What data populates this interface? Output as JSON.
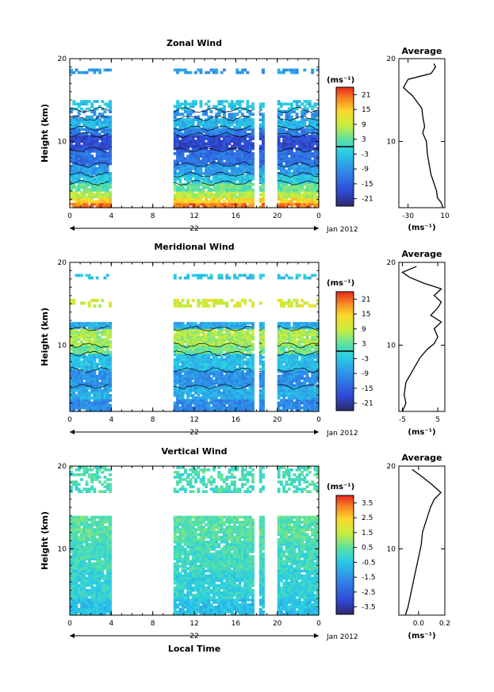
{
  "chart_data": [
    {
      "type": "heatmap",
      "title": "Zonal Wind",
      "ylabel": "Height (km)",
      "xlabel": "",
      "x_ticks": [
        "0",
        "4",
        "8",
        "12",
        "16",
        "20",
        "0"
      ],
      "y_ticks": [
        "10",
        "20"
      ],
      "date_center_label": "22",
      "date_label": "Jan 2012",
      "xlim": [
        0,
        24
      ],
      "ylim": [
        2,
        20
      ],
      "colorbar": {
        "unit": "(ms⁻¹)",
        "ticks": [
          "21",
          "15",
          "9",
          "3",
          "-3",
          "-9",
          "-15",
          "-21"
        ],
        "range": [
          -24,
          24
        ]
      },
      "gaps_hours": [
        [
          4.0,
          9.8
        ],
        [
          17.6,
          18.1
        ],
        [
          18.6,
          20.0
        ]
      ],
      "layers": [
        {
          "y0": 2.0,
          "y1": 2.6,
          "value": 20
        },
        {
          "y0": 2.6,
          "y1": 3.2,
          "value": 14
        },
        {
          "y0": 3.2,
          "y1": 4.0,
          "value": 8
        },
        {
          "y0": 4.0,
          "y1": 5.0,
          "value": 3
        },
        {
          "y0": 5.0,
          "y1": 6.0,
          "value": -3
        },
        {
          "y0": 6.0,
          "y1": 7.2,
          "value": -8
        },
        {
          "y0": 7.2,
          "y1": 9.0,
          "value": -13
        },
        {
          "y0": 9.0,
          "y1": 10.8,
          "value": -18
        },
        {
          "y0": 10.8,
          "y1": 11.6,
          "value": -11
        },
        {
          "y0": 11.6,
          "y1": 12.8,
          "value": -5
        },
        {
          "y0": 12.8,
          "y1": 13.8,
          "value": -9
        },
        {
          "y0": 13.8,
          "y1": 15.0,
          "value": -3
        },
        {
          "y0": 18.2,
          "y1": 18.8,
          "value": -8
        }
      ],
      "average_profile": {
        "title": "Average",
        "xlabel": "(ms⁻¹)",
        "x_ticks": [
          "-30",
          "10"
        ],
        "y_ticks": [
          "10",
          "20"
        ],
        "xlim": [
          -40,
          10
        ],
        "ylim": [
          2,
          20
        ],
        "points": [
          [
            8,
            2.0
          ],
          [
            6,
            2.6
          ],
          [
            2,
            3.2
          ],
          [
            1,
            4.0
          ],
          [
            -2,
            5.0
          ],
          [
            -5,
            6.0
          ],
          [
            -7,
            7.2
          ],
          [
            -9,
            8.5
          ],
          [
            -10,
            10.0
          ],
          [
            -14,
            11.0
          ],
          [
            -12,
            11.8
          ],
          [
            -14,
            13.0
          ],
          [
            -15,
            14.0
          ],
          [
            -25,
            15.5
          ],
          [
            -35,
            16.5
          ],
          [
            -30,
            17.5
          ],
          [
            -5,
            18.2
          ],
          [
            0,
            19.0
          ],
          [
            -2,
            19.4
          ]
        ]
      }
    },
    {
      "type": "heatmap",
      "title": "Meridional Wind",
      "ylabel": "Height (km)",
      "xlabel": "",
      "x_ticks": [
        "0",
        "4",
        "8",
        "12",
        "16",
        "20",
        "0"
      ],
      "y_ticks": [
        "10",
        "20"
      ],
      "date_center_label": "22",
      "date_label": "Jan 2012",
      "xlim": [
        0,
        24
      ],
      "ylim": [
        2,
        20
      ],
      "colorbar": {
        "unit": "(ms⁻¹)",
        "ticks": [
          "21",
          "15",
          "9",
          "3",
          "-3",
          "-9",
          "-15",
          "-21"
        ],
        "range": [
          -24,
          24
        ]
      },
      "gaps_hours": [
        [
          4.0,
          9.8
        ],
        [
          17.6,
          18.1
        ],
        [
          18.6,
          20.0
        ]
      ],
      "layers": [
        {
          "y0": 2.0,
          "y1": 3.5,
          "value": -10
        },
        {
          "y0": 3.5,
          "y1": 5.0,
          "value": -6
        },
        {
          "y0": 5.0,
          "y1": 7.0,
          "value": -9
        },
        {
          "y0": 7.0,
          "y1": 9.0,
          "value": -4
        },
        {
          "y0": 9.0,
          "y1": 10.0,
          "value": 4
        },
        {
          "y0": 10.0,
          "y1": 12.0,
          "value": 7
        },
        {
          "y0": 12.0,
          "y1": 12.8,
          "value": -6
        },
        {
          "y0": 14.6,
          "y1": 15.6,
          "value": 10
        },
        {
          "y0": 18.0,
          "y1": 18.6,
          "value": -3
        }
      ],
      "average_profile": {
        "title": "Average",
        "xlabel": "(ms⁻¹)",
        "x_ticks": [
          "-5",
          "5"
        ],
        "y_ticks": [
          "10",
          "20"
        ],
        "xlim": [
          -6,
          7
        ],
        "ylim": [
          2,
          20
        ],
        "points": [
          [
            -5,
            2.0
          ],
          [
            -4,
            3.0
          ],
          [
            -4.5,
            4.0
          ],
          [
            -4,
            5.5
          ],
          [
            -2,
            7.0
          ],
          [
            0,
            8.5
          ],
          [
            2,
            9.5
          ],
          [
            4,
            10.2
          ],
          [
            5,
            11.0
          ],
          [
            4,
            12.0
          ],
          [
            6,
            12.8
          ],
          [
            3,
            13.6
          ],
          [
            5,
            14.5
          ],
          [
            6,
            15.2
          ],
          [
            4,
            16.0
          ],
          [
            6,
            16.8
          ],
          [
            1,
            17.5
          ],
          [
            -3,
            18.2
          ],
          [
            -5,
            18.8
          ],
          [
            -1,
            19.5
          ]
        ]
      }
    },
    {
      "type": "heatmap",
      "title": "Vertical Wind",
      "ylabel": "Height (km)",
      "xlabel": "Local Time",
      "x_ticks": [
        "0",
        "4",
        "8",
        "12",
        "16",
        "20",
        "0"
      ],
      "y_ticks": [
        "10",
        "20"
      ],
      "date_center_label": "22",
      "date_label": "Jan 2012",
      "xlim": [
        0,
        24
      ],
      "ylim": [
        2,
        20
      ],
      "colorbar": {
        "unit": "(ms⁻¹)",
        "ticks": [
          "3.5",
          "2.5",
          "1.5",
          "0.5",
          "-0.5",
          "-1.5",
          "-2.5",
          "-3.5"
        ],
        "range": [
          -4,
          4
        ]
      },
      "gaps_hours": [
        [
          4.0,
          9.8
        ],
        [
          17.6,
          18.1
        ],
        [
          18.6,
          20.0
        ]
      ],
      "layers": [
        {
          "y0": 2.0,
          "y1": 4.0,
          "value": -0.6
        },
        {
          "y0": 4.0,
          "y1": 7.5,
          "value": -0.2
        },
        {
          "y0": 7.5,
          "y1": 11.0,
          "value": 0.1
        },
        {
          "y0": 11.0,
          "y1": 14.0,
          "value": 0.4
        },
        {
          "y0": 16.8,
          "y1": 20.0,
          "value": 0.2
        }
      ],
      "average_profile": {
        "title": "Average",
        "xlabel": "(ms⁻¹)",
        "x_ticks": [
          "0.0",
          "0.2"
        ],
        "y_ticks": [
          "10",
          "20"
        ],
        "xlim": [
          -0.15,
          0.2
        ],
        "ylim": [
          2,
          20
        ],
        "points": [
          [
            -0.1,
            2.0
          ],
          [
            -0.08,
            3.0
          ],
          [
            -0.06,
            4.5
          ],
          [
            -0.04,
            6.0
          ],
          [
            -0.02,
            7.5
          ],
          [
            0.0,
            9.0
          ],
          [
            0.02,
            10.5
          ],
          [
            0.03,
            12.0
          ],
          [
            0.06,
            13.5
          ],
          [
            0.09,
            15.0
          ],
          [
            0.12,
            16.0
          ],
          [
            0.17,
            16.8
          ],
          [
            0.1,
            17.8
          ],
          [
            0.02,
            18.8
          ],
          [
            -0.05,
            19.6
          ]
        ]
      }
    }
  ]
}
